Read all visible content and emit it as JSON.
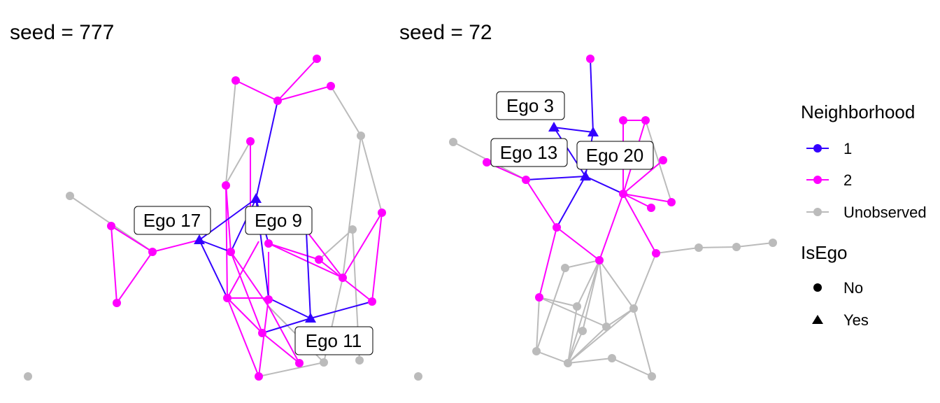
{
  "colors": {
    "neighborhood_1": "#3300ff",
    "neighborhood_2": "#ff00ff",
    "unobserved": "#bbbbbb",
    "background": "#ffffff",
    "label_border": "#000000"
  },
  "panels": [
    {
      "title": "seed = 777",
      "ego_labels": [
        "Ego 17",
        "Ego 9",
        "Ego 11"
      ]
    },
    {
      "title": "seed = 72",
      "ego_labels": [
        "Ego 3",
        "Ego 13",
        "Ego 20"
      ]
    }
  ],
  "legend": {
    "neighborhood": {
      "title": "Neighborhood",
      "items": [
        {
          "label": "1",
          "color": "#3300ff"
        },
        {
          "label": "2",
          "color": "#ff00ff"
        },
        {
          "label": "Unobserved",
          "color": "#bbbbbb"
        }
      ]
    },
    "isego": {
      "title": "IsEgo",
      "items": [
        {
          "label": "No",
          "shape": "circle"
        },
        {
          "label": "Yes",
          "shape": "triangle"
        }
      ]
    }
  }
}
